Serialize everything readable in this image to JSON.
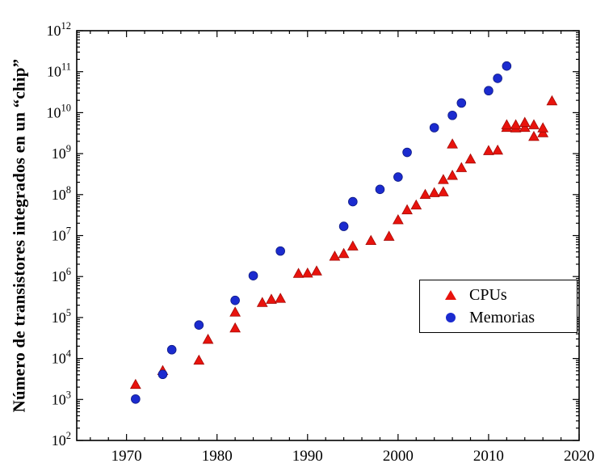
{
  "chart_data": {
    "type": "scatter",
    "title": "",
    "xlabel": "",
    "ylabel": "Número de transistores integrados en un “chip”",
    "x_range": [
      1964.5,
      2020
    ],
    "x_ticks": [
      1970,
      1980,
      1990,
      2000,
      2010,
      2020
    ],
    "x_minor_step": 2,
    "y_scale": "log",
    "y_range_exponents": [
      2,
      12
    ],
    "grid": false,
    "frame_color": "#000000",
    "legend": {
      "position": "center-right",
      "entries": [
        {
          "label": "CPUs",
          "marker": "triangle",
          "color": "#e8130d"
        },
        {
          "label": "Memorias",
          "marker": "circle",
          "color": "#1b2bcf"
        }
      ]
    },
    "series": [
      {
        "name": "CPUs",
        "marker": "triangle",
        "color": "#e8130d",
        "edge_color": "#a50b07",
        "points": [
          [
            1971,
            2300
          ],
          [
            1974,
            5000
          ],
          [
            1978,
            9000
          ],
          [
            1979,
            29000
          ],
          [
            1982,
            55000
          ],
          [
            1982,
            134000
          ],
          [
            1985,
            230000
          ],
          [
            1986,
            275000
          ],
          [
            1987,
            290000
          ],
          [
            1989,
            1180000
          ],
          [
            1990,
            1200000
          ],
          [
            1991,
            1350000
          ],
          [
            1993,
            3100000
          ],
          [
            1994,
            3600000
          ],
          [
            1995,
            5500000
          ],
          [
            1997,
            7500000
          ],
          [
            1999,
            9500000
          ],
          [
            2000,
            24000000
          ],
          [
            2001,
            42000000
          ],
          [
            2002,
            55000000
          ],
          [
            2003,
            100000000
          ],
          [
            2004,
            110000000
          ],
          [
            2005,
            115000000
          ],
          [
            2005,
            230000000
          ],
          [
            2006,
            291000000
          ],
          [
            2006,
            1700000000
          ],
          [
            2007,
            450000000
          ],
          [
            2008,
            730000000
          ],
          [
            2010,
            1170000000
          ],
          [
            2011,
            1200000000
          ],
          [
            2012,
            4300000000
          ],
          [
            2012,
            5000000000
          ],
          [
            2013,
            4200000000
          ],
          [
            2013,
            5000000000
          ],
          [
            2014,
            4300000000
          ],
          [
            2014,
            5700000000
          ],
          [
            2015,
            2600000000
          ],
          [
            2015,
            5000000000
          ],
          [
            2016,
            3200000000
          ],
          [
            2016,
            4200000000
          ],
          [
            2017,
            19200000000
          ]
        ]
      },
      {
        "name": "Memorias",
        "marker": "circle",
        "color": "#1b2bcf",
        "edge_color": "#101c86",
        "points": [
          [
            1971,
            1024
          ],
          [
            1974,
            4096
          ],
          [
            1975,
            16384
          ],
          [
            1978,
            65536
          ],
          [
            1982,
            262144
          ],
          [
            1984,
            1048576
          ],
          [
            1987,
            4194304
          ],
          [
            1994,
            16777216
          ],
          [
            1995,
            67108864
          ],
          [
            1998,
            134217728
          ],
          [
            2000,
            268435456
          ],
          [
            2001,
            1073741824
          ],
          [
            2004,
            4294967296
          ],
          [
            2006,
            8589934592
          ],
          [
            2007,
            17179869184
          ],
          [
            2010,
            34359738368
          ],
          [
            2011,
            68719476736
          ],
          [
            2012,
            137438953472
          ]
        ]
      }
    ]
  }
}
